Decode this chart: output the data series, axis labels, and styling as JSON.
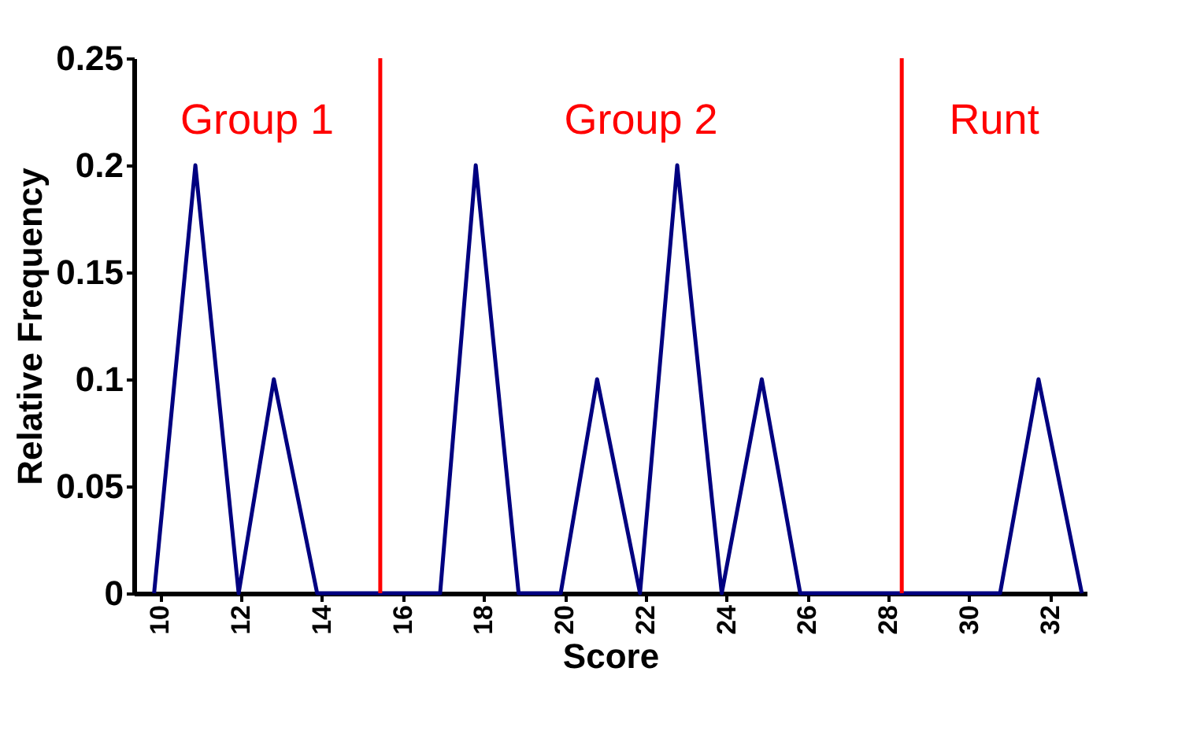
{
  "chart_data": {
    "type": "line",
    "xlabel": "Score",
    "ylabel": "Relative Frequency",
    "x": [
      9.85,
      10.87,
      11.94,
      12.81,
      13.88,
      16.92,
      17.8,
      18.86,
      19.9,
      20.8,
      21.86,
      22.78,
      23.88,
      24.87,
      25.82,
      30.76,
      31.71,
      32.78
    ],
    "series": [
      {
        "color": "#000080",
        "values": [
          0,
          0.2,
          0,
          0.1,
          0,
          0,
          0.2,
          0,
          0,
          0.1,
          0,
          0.2,
          0,
          0.1,
          0,
          0,
          0.1,
          0
        ]
      }
    ],
    "xlim": [
      9.35,
      32.9
    ],
    "xticks": [
      10,
      12,
      14,
      16,
      18,
      20,
      22,
      24,
      26,
      28,
      30,
      32
    ],
    "ylim": [
      0,
      0.25
    ],
    "yticks": [
      0,
      0.05,
      0.1,
      0.15,
      0.2,
      0.25
    ],
    "ref_lines": [
      {
        "axis": "x",
        "value": 15.44,
        "color": "#ff0000"
      },
      {
        "axis": "x",
        "value": 28.33,
        "color": "#ff0000"
      }
    ],
    "annotations": [
      "Group 1",
      "Group 2",
      "Runt"
    ],
    "grid": false,
    "marker": "none",
    "line_style": "solid"
  }
}
